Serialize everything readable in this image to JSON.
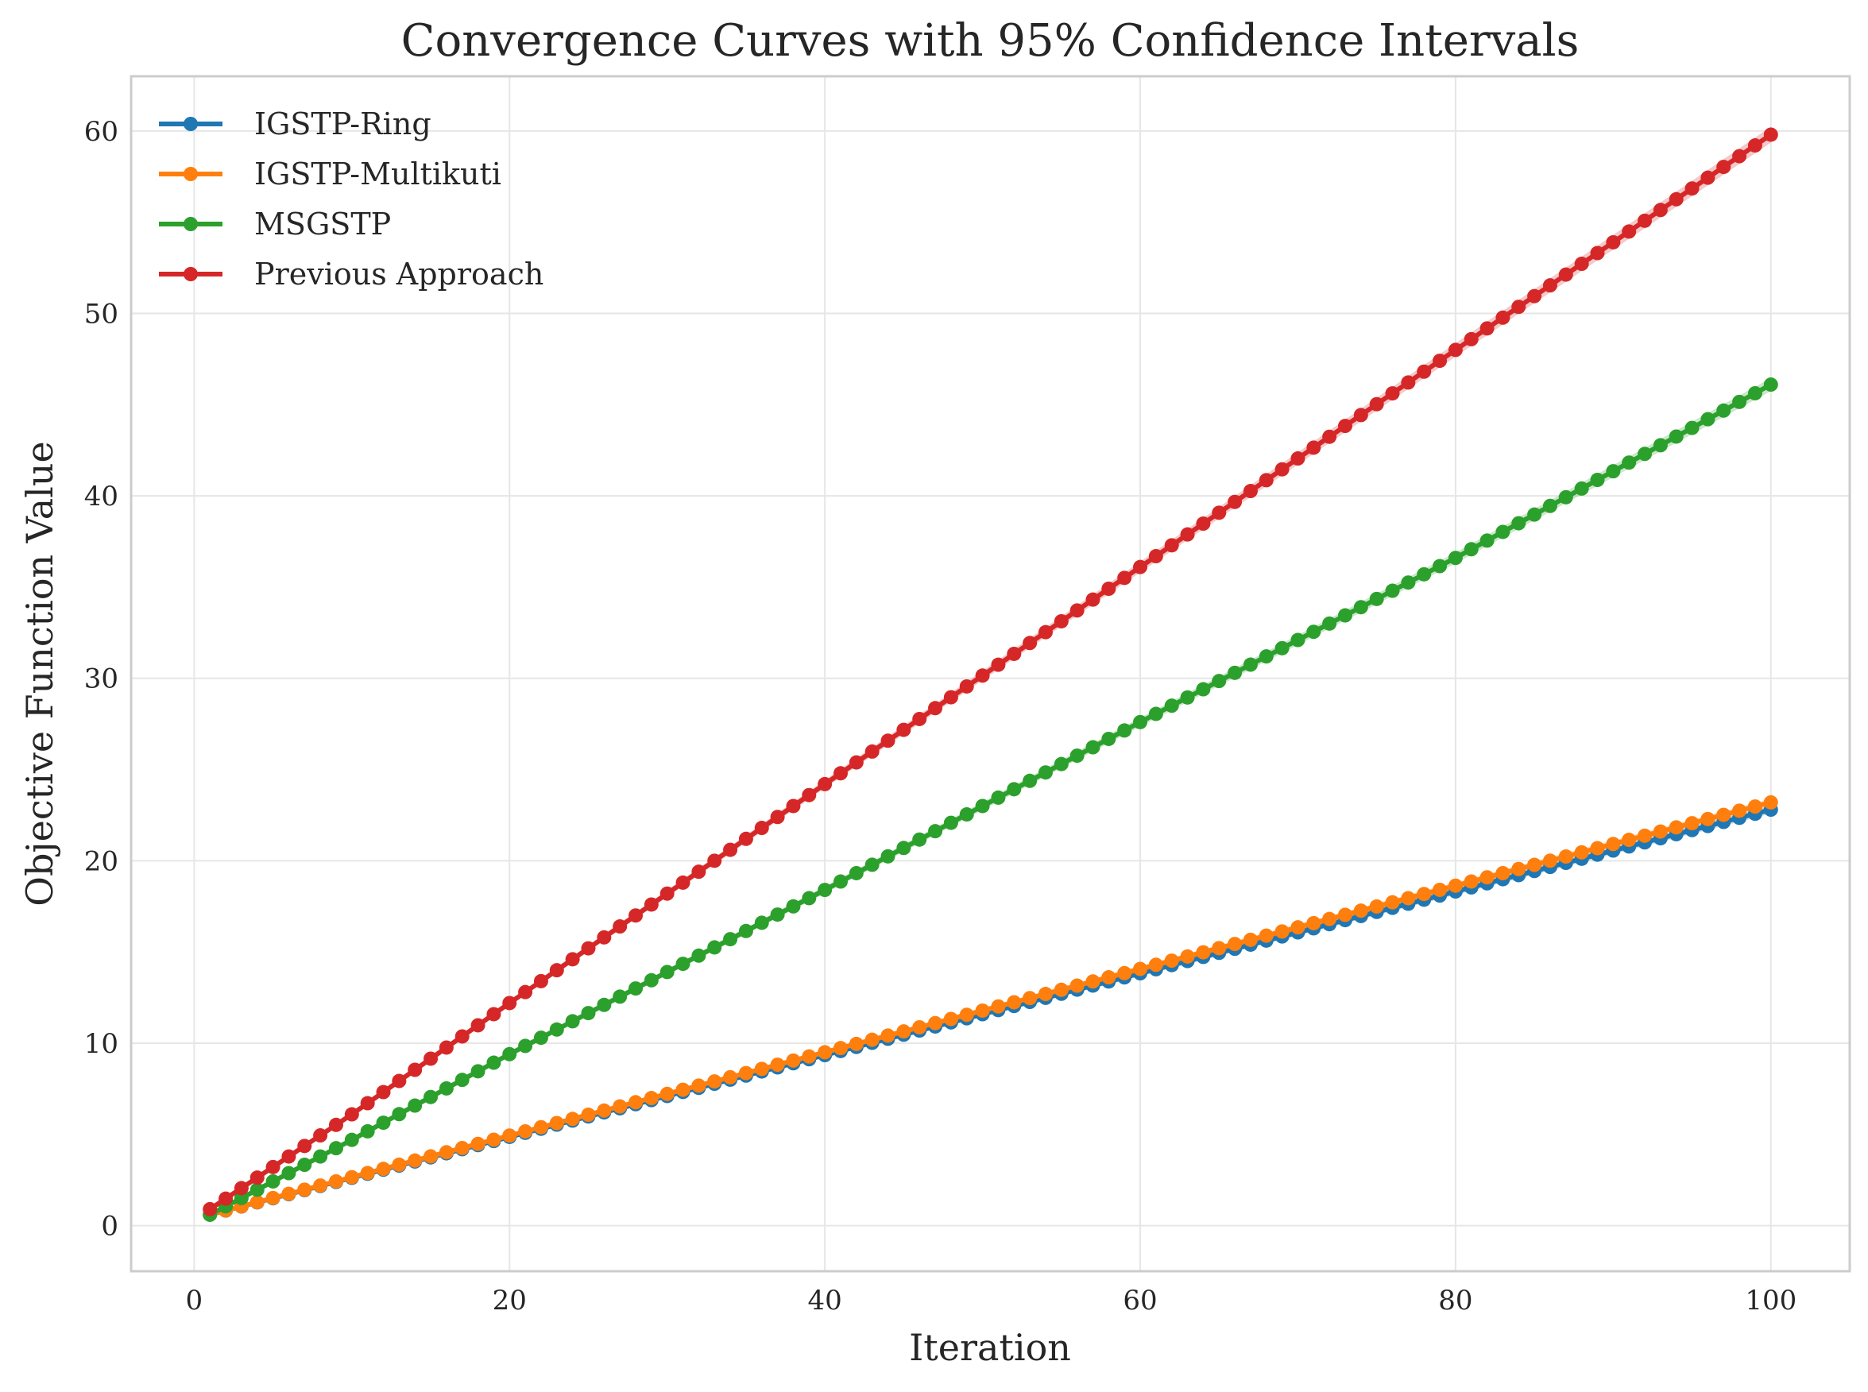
{
  "chart_data": {
    "type": "line",
    "title": "Convergence Curves with 95% Confidence Intervals",
    "xlabel": "Iteration",
    "ylabel": "Objective Function Value",
    "xlim": [
      -4,
      105
    ],
    "ylim": [
      -2.5,
      63
    ],
    "xticks": [
      0,
      20,
      40,
      60,
      80,
      100
    ],
    "yticks": [
      0,
      10,
      20,
      30,
      40,
      50,
      60
    ],
    "grid": true,
    "legend_position": "upper-left",
    "x": {
      "start": 1,
      "end": 100,
      "step": 1
    },
    "series": [
      {
        "name": "IGSTP-Ring",
        "color": "#1f77b4",
        "y_start": 0.6,
        "y_end": 22.8
      },
      {
        "name": "IGSTP-Multikuti",
        "color": "#ff7f0e",
        "y_start": 0.6,
        "y_end": 23.2
      },
      {
        "name": "MSGSTP",
        "color": "#2ca02c",
        "y_start": 0.6,
        "y_end": 46.1,
        "y_at_10": 4.7,
        "y_at_20": 9.4,
        "y_at_40": 18.4,
        "y_at_60": 27.6,
        "y_at_80": 36.6
      },
      {
        "name": "Previous Approach",
        "color": "#d62728",
        "y_start": 0.9,
        "y_end": 59.8,
        "y_at_10": 6.1,
        "y_at_20": 12.2,
        "y_at_40": 24.2,
        "y_at_60": 36.1,
        "y_at_80": 48.0
      }
    ]
  }
}
